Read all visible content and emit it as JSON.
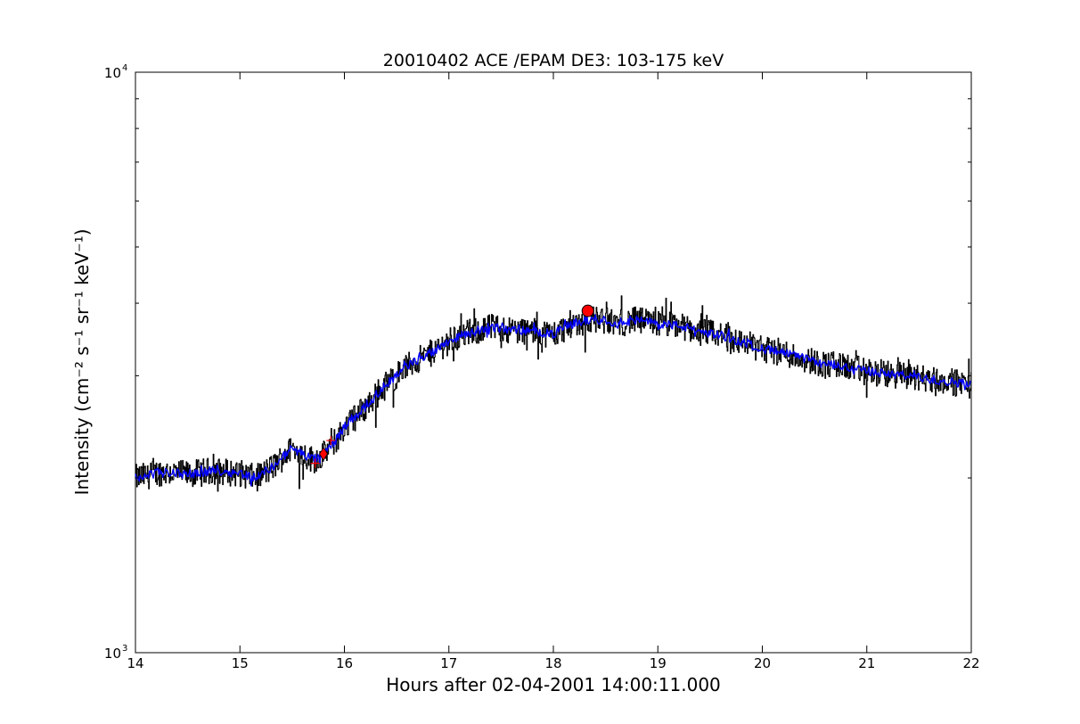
{
  "chart_data": {
    "type": "line",
    "title": "20010402 ACE /EPAM DE3: 103-175 keV",
    "xlabel": "Hours after 02-04-2001 14:00:11.000",
    "ylabel": "Intensity (cm⁻² s⁻¹ sr⁻¹ keV⁻¹)",
    "xlim": [
      14,
      22
    ],
    "ylim": [
      1000,
      10000
    ],
    "yscale": "log",
    "grid": false,
    "x_ticks": [
      "14",
      "15",
      "16",
      "17",
      "18",
      "19",
      "20",
      "21",
      "22"
    ],
    "y_ticks": [
      {
        "value": 1000,
        "label": "10",
        "exponent": "3"
      },
      {
        "value": 10000,
        "label": "10",
        "exponent": "4"
      }
    ],
    "colors": {
      "raw": "#000000",
      "smoothed": "#0000ff",
      "markers": "#ff0000"
    },
    "series": [
      {
        "style": "raw-noisy",
        "color": "#000000",
        "x": [
          14.0,
          14.25,
          14.5,
          14.75,
          15.0,
          15.15,
          15.3,
          15.5,
          15.7,
          15.8,
          15.9,
          16.0,
          16.2,
          16.4,
          16.6,
          16.8,
          17.0,
          17.2,
          17.4,
          17.6,
          17.8,
          18.0,
          18.2,
          18.4,
          18.6,
          18.8,
          19.0,
          19.2,
          19.4,
          19.6,
          19.8,
          20.0,
          20.2,
          20.4,
          20.6,
          20.8,
          21.0,
          21.2,
          21.4,
          21.6,
          21.8,
          22.0
        ],
        "y": [
          2000,
          2050,
          2030,
          2060,
          2040,
          2000,
          2080,
          2250,
          2150,
          2200,
          2300,
          2450,
          2650,
          2900,
          3120,
          3260,
          3450,
          3560,
          3640,
          3600,
          3580,
          3540,
          3700,
          3760,
          3700,
          3740,
          3690,
          3660,
          3580,
          3520,
          3430,
          3340,
          3290,
          3210,
          3140,
          3110,
          3060,
          3020,
          3000,
          2960,
          2930,
          2900
        ]
      },
      {
        "style": "smoothed",
        "color": "#0000ff",
        "x": [
          14.0,
          14.25,
          14.5,
          14.75,
          15.0,
          15.15,
          15.3,
          15.5,
          15.7,
          15.8,
          15.9,
          16.0,
          16.2,
          16.4,
          16.6,
          16.8,
          17.0,
          17.2,
          17.4,
          17.6,
          17.8,
          18.0,
          18.2,
          18.4,
          18.6,
          18.8,
          19.0,
          19.2,
          19.4,
          19.6,
          19.8,
          20.0,
          20.2,
          20.4,
          20.6,
          20.8,
          21.0,
          21.2,
          21.4,
          21.6,
          21.8,
          22.0
        ],
        "y": [
          2000,
          2050,
          2030,
          2060,
          2040,
          2000,
          2080,
          2250,
          2150,
          2200,
          2300,
          2450,
          2650,
          2900,
          3120,
          3260,
          3450,
          3560,
          3640,
          3600,
          3580,
          3540,
          3700,
          3760,
          3700,
          3740,
          3690,
          3660,
          3580,
          3520,
          3430,
          3340,
          3290,
          3210,
          3140,
          3110,
          3060,
          3020,
          3000,
          2960,
          2930,
          2900
        ]
      }
    ],
    "markers": [
      {
        "kind": "circle",
        "x": 18.33,
        "y": 3880,
        "color": "#ff0000"
      },
      {
        "kind": "diamond",
        "x": 15.8,
        "y": 2200,
        "color": "#ff0000"
      },
      {
        "kind": "cross",
        "x": 15.72,
        "y": 2120,
        "color": "#ff0000"
      },
      {
        "kind": "cross",
        "x": 15.87,
        "y": 2320,
        "color": "#ff0000"
      }
    ]
  }
}
